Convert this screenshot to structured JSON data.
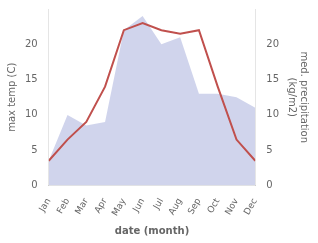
{
  "chart_data": {
    "type": "line",
    "categories": [
      "Jan",
      "Feb",
      "Mar",
      "Apr",
      "May",
      "Jun",
      "Jul",
      "Aug",
      "Sep",
      "Oct",
      "Nov",
      "Dec"
    ],
    "series": [
      {
        "type": "line",
        "color": "#c0504d",
        "values": [
          3.5,
          6.5,
          9.0,
          14.0,
          22.0,
          23.0,
          22.0,
          21.5,
          22.0,
          14.0,
          6.5,
          3.5
        ]
      },
      {
        "type": "area",
        "color": "#b0b8e0",
        "axis": "y2",
        "values": [
          3.5,
          10.0,
          8.5,
          9.0,
          22.0,
          24.0,
          20.0,
          21.0,
          13.0,
          13.0,
          12.5,
          11.0
        ]
      }
    ],
    "x_label": "date (month)",
    "y_label": "max temp (C)",
    "y2_label": "med. precipitation\n(kg/m2)",
    "ylim": [
      0,
      25
    ],
    "yticks": [
      0,
      5,
      10,
      15,
      20
    ],
    "y2lim": [
      0,
      25
    ],
    "y2ticks": [
      0,
      5,
      10,
      15,
      20
    ],
    "grid": false
  }
}
